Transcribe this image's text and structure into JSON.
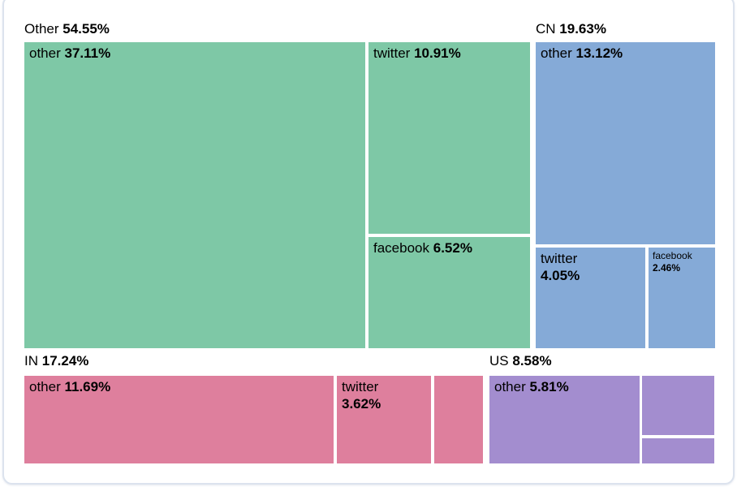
{
  "chart_data": {
    "type": "treemap",
    "unit": "percent",
    "legend_position": "none",
    "groups": [
      {
        "label": "Other",
        "value": 54.55,
        "color": "#7ec8a6",
        "children": [
          {
            "label": "other",
            "value": 37.11
          },
          {
            "label": "twitter",
            "value": 10.91
          },
          {
            "label": "facebook",
            "value": 6.52
          }
        ]
      },
      {
        "label": "CN",
        "value": 19.63,
        "color": "#85aad7",
        "children": [
          {
            "label": "other",
            "value": 13.12
          },
          {
            "label": "twitter",
            "value": 4.05
          },
          {
            "label": "facebook",
            "value": 2.46
          }
        ]
      },
      {
        "label": "IN",
        "value": 17.24,
        "color": "#de7f9d",
        "children": [
          {
            "label": "other",
            "value": 11.69
          },
          {
            "label": "twitter",
            "value": 3.62
          },
          {
            "label": "",
            "value": null
          }
        ]
      },
      {
        "label": "US",
        "value": 8.58,
        "color": "#a38dcf",
        "children": [
          {
            "label": "other",
            "value": 5.81
          },
          {
            "label": "",
            "value": null
          },
          {
            "label": "",
            "value": null
          }
        ]
      }
    ]
  },
  "group_labels": {
    "other": {
      "name": "Other",
      "pct": "54.55%"
    },
    "cn": {
      "name": "CN",
      "pct": "19.63%"
    },
    "in": {
      "name": "IN",
      "pct": "17.24%"
    },
    "us": {
      "name": "US",
      "pct": "8.58%"
    }
  },
  "cells": {
    "other_other": {
      "name": "other",
      "pct": "37.11%"
    },
    "other_twitter": {
      "name": "twitter",
      "pct": "10.91%"
    },
    "other_facebook": {
      "name": "facebook",
      "pct": "6.52%"
    },
    "cn_other": {
      "name": "other",
      "pct": "13.12%"
    },
    "cn_twitter": {
      "name": "twitter",
      "pct": "4.05%"
    },
    "cn_facebook": {
      "name": "facebook",
      "pct": "2.46%"
    },
    "in_other": {
      "name": "other",
      "pct": "11.69%"
    },
    "in_twitter": {
      "name": "twitter",
      "pct": "3.62%"
    },
    "us_other": {
      "name": "other",
      "pct": "5.81%"
    }
  },
  "colors": {
    "group_other": "#7ec8a6",
    "group_cn": "#85aad7",
    "group_in": "#de7f9d",
    "group_us": "#a38dcf",
    "card_border": "#dce3ee",
    "text": "#000000",
    "background": "#ffffff"
  }
}
